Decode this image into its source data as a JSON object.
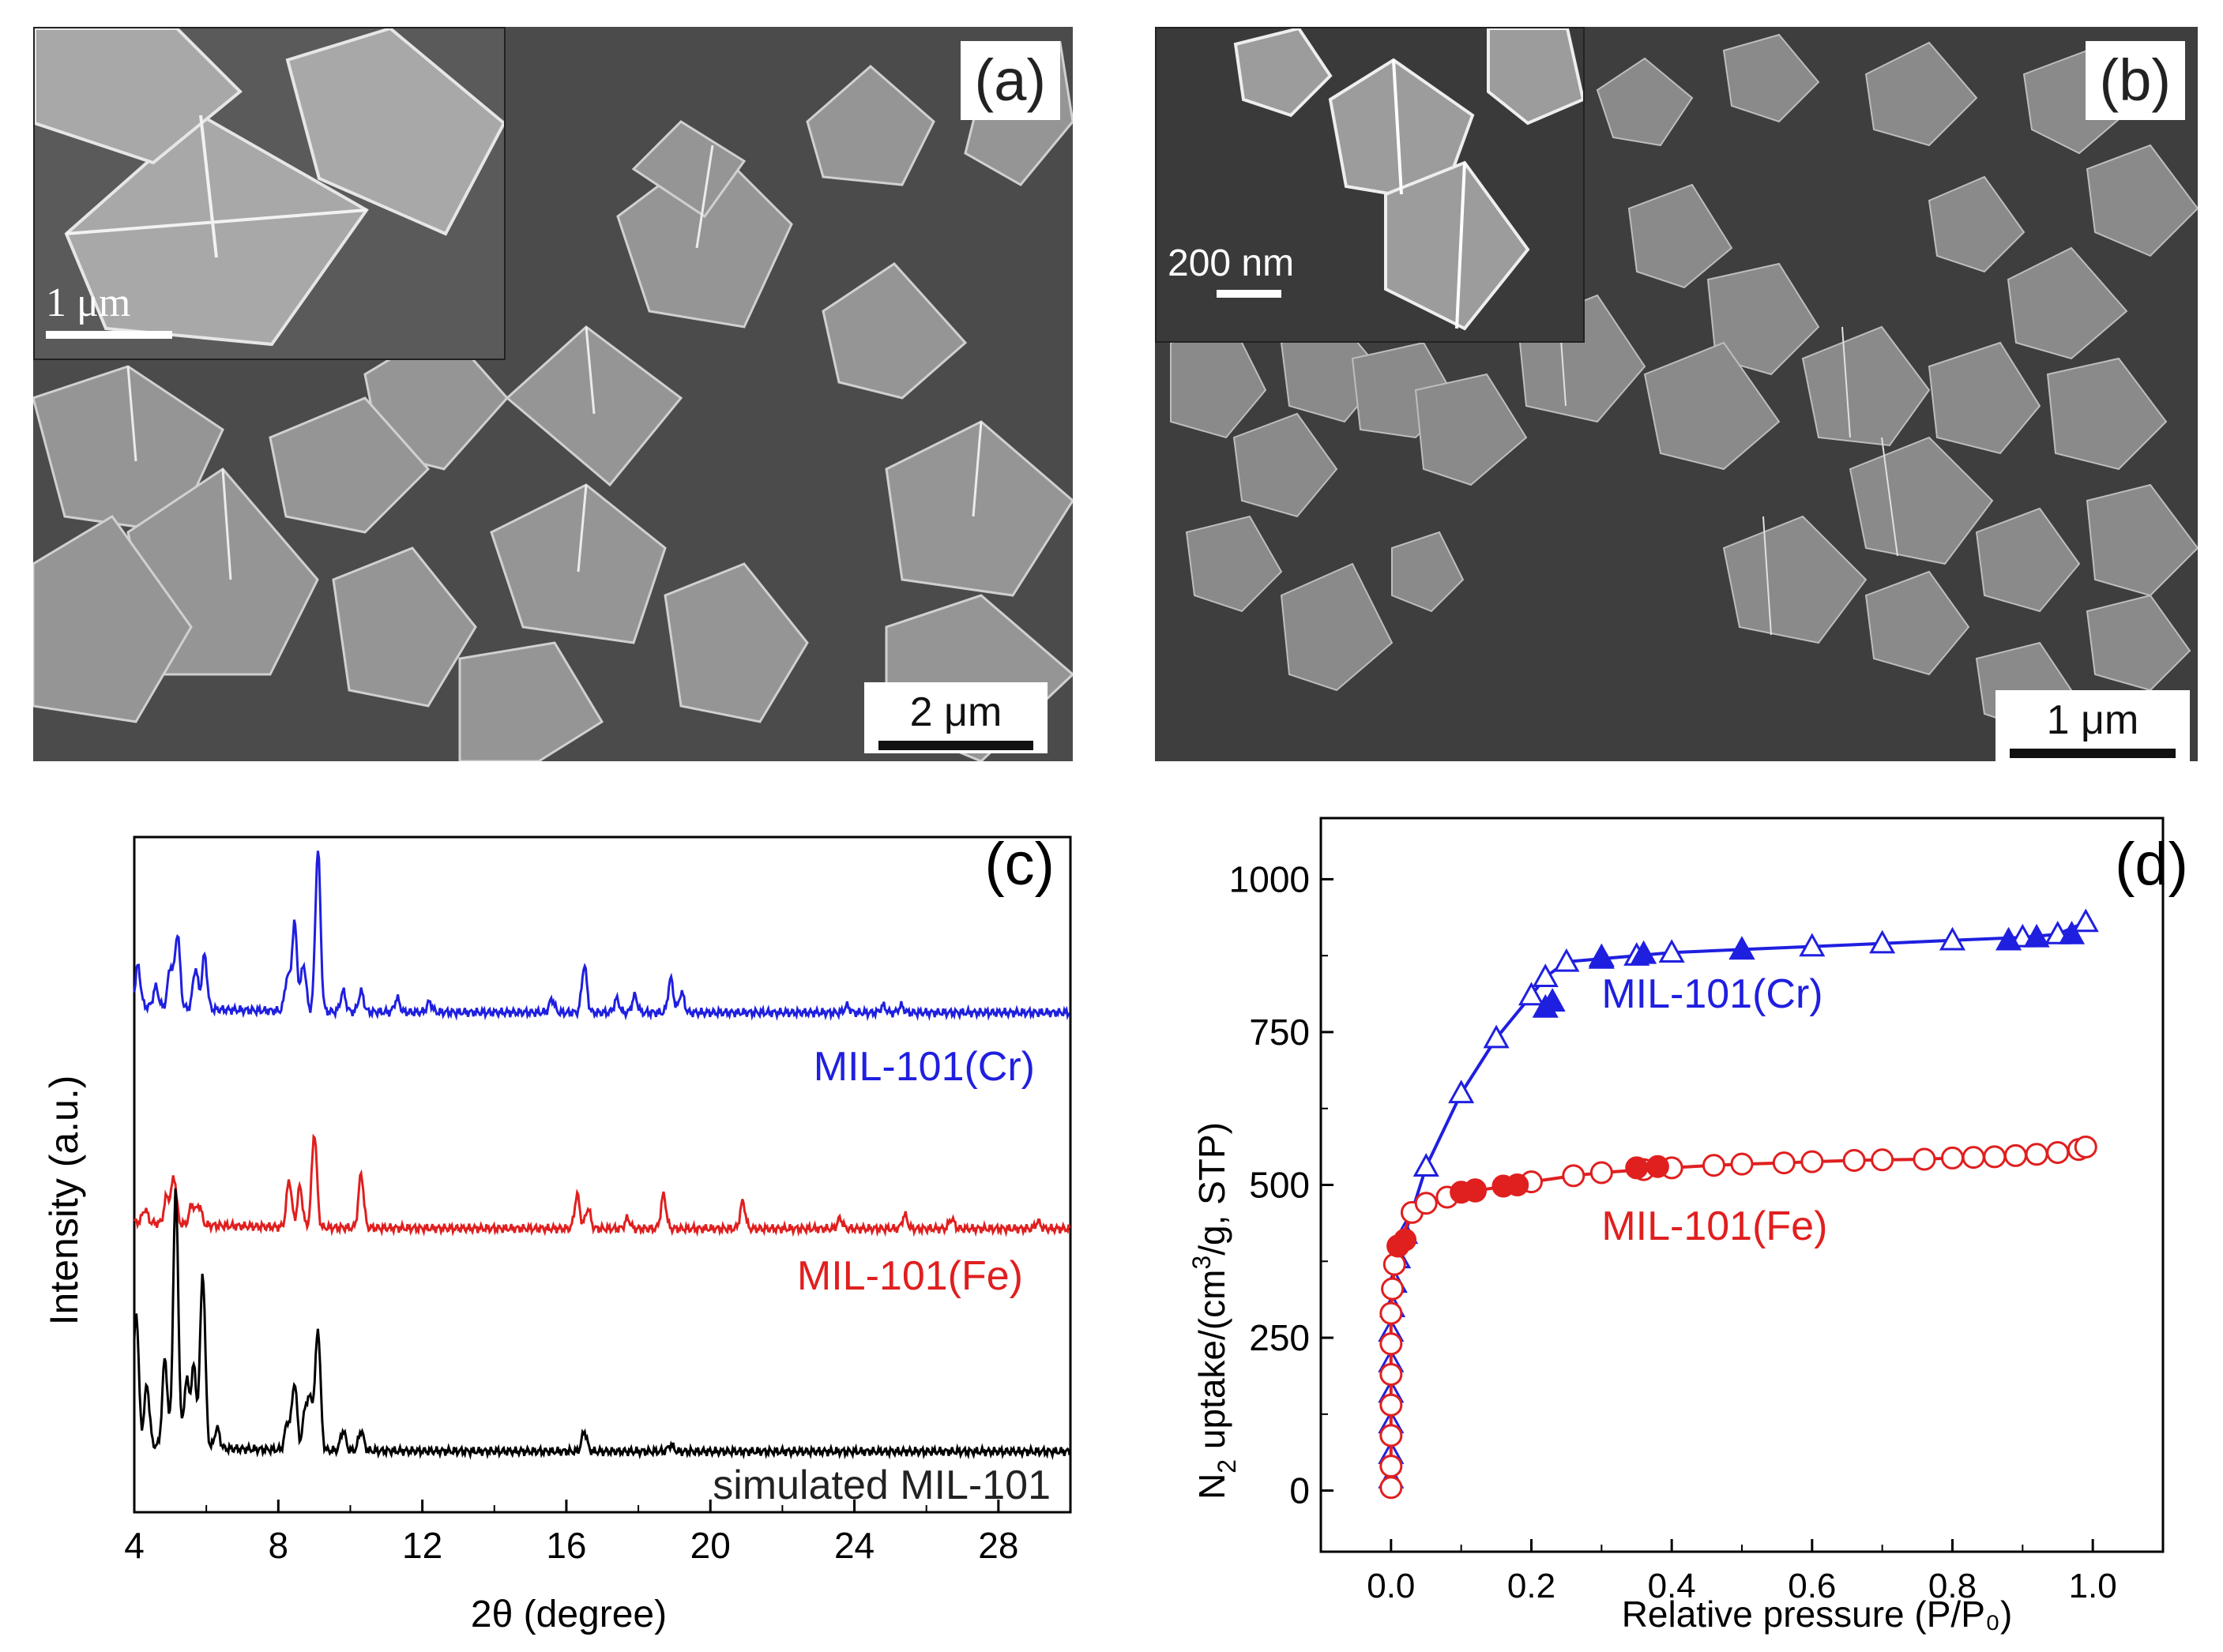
{
  "panels": {
    "a": {
      "label": "(a)",
      "scale_main": "2 μm",
      "scale_inset": "1 μm"
    },
    "b": {
      "label": "(b)",
      "scale_main": "1 μm",
      "scale_inset": "200 nm"
    }
  },
  "colors": {
    "cr": "#1f1fe0",
    "fe": "#e01f1f",
    "sim": "#000000"
  },
  "chart_data": [
    {
      "panel": "(c)",
      "type": "line",
      "xlabel": "2θ (degree)",
      "ylabel": "Intensity (a.u.)",
      "xlim": [
        4,
        30
      ],
      "ylim": [
        0,
        1
      ],
      "xticks": [
        4,
        8,
        12,
        16,
        20,
        24,
        28
      ],
      "series": [
        {
          "name": "MIL-101(Cr)",
          "label": "MIL-101(Cr)",
          "color": "#1f1fe0",
          "baseline": 0.74,
          "peaks": [
            [
              4.1,
              0.06
            ],
            [
              4.6,
              0.03
            ],
            [
              5.0,
              0.06
            ],
            [
              5.2,
              0.11
            ],
            [
              5.7,
              0.06
            ],
            [
              5.95,
              0.08
            ],
            [
              8.25,
              0.05
            ],
            [
              8.45,
              0.13
            ],
            [
              8.7,
              0.07
            ],
            [
              9.1,
              0.24
            ],
            [
              9.8,
              0.03
            ],
            [
              10.3,
              0.03
            ],
            [
              11.3,
              0.02
            ],
            [
              12.2,
              0.015
            ],
            [
              15.6,
              0.02
            ],
            [
              16.5,
              0.07
            ],
            [
              17.4,
              0.02
            ],
            [
              17.9,
              0.025
            ],
            [
              18.9,
              0.05
            ],
            [
              19.2,
              0.03
            ],
            [
              23.8,
              0.01
            ],
            [
              24.8,
              0.01
            ],
            [
              25.3,
              0.01
            ]
          ]
        },
        {
          "name": "MIL-101(Fe)",
          "label": "MIL-101(Fe)",
          "color": "#e01f1f",
          "baseline": 0.42,
          "peaks": [
            [
              4.3,
              0.02
            ],
            [
              4.9,
              0.04
            ],
            [
              5.1,
              0.07
            ],
            [
              5.6,
              0.03
            ],
            [
              5.8,
              0.03
            ],
            [
              8.3,
              0.07
            ],
            [
              8.6,
              0.06
            ],
            [
              9.0,
              0.14
            ],
            [
              10.3,
              0.08
            ],
            [
              16.3,
              0.05
            ],
            [
              16.6,
              0.03
            ],
            [
              17.7,
              0.015
            ],
            [
              18.7,
              0.05
            ],
            [
              20.9,
              0.04
            ],
            [
              23.6,
              0.015
            ],
            [
              25.4,
              0.02
            ],
            [
              26.7,
              0.015
            ],
            [
              29.1,
              0.01
            ]
          ]
        },
        {
          "name": "simulated MIL-101",
          "label": "simulated MIL-101",
          "color": "#000000",
          "baseline": 0.09,
          "peaks": [
            [
              4.05,
              0.2
            ],
            [
              4.35,
              0.09
            ],
            [
              4.85,
              0.13
            ],
            [
              5.15,
              0.38
            ],
            [
              5.45,
              0.1
            ],
            [
              5.65,
              0.12
            ],
            [
              5.9,
              0.26
            ],
            [
              6.3,
              0.03
            ],
            [
              8.25,
              0.04
            ],
            [
              8.45,
              0.1
            ],
            [
              8.75,
              0.06
            ],
            [
              8.9,
              0.07
            ],
            [
              9.1,
              0.18
            ],
            [
              9.8,
              0.03
            ],
            [
              10.3,
              0.03
            ],
            [
              16.5,
              0.03
            ],
            [
              18.9,
              0.01
            ]
          ]
        }
      ]
    },
    {
      "panel": "(d)",
      "type": "scatter",
      "xlabel": "Relative pressure (P/P₀)",
      "ylabel_main": "N",
      "ylabel_sub": "2",
      "ylabel_rest": " uptake/(cm",
      "ylabel_sup": "3",
      "ylabel_end": "/g, STP)",
      "xlim": [
        -0.1,
        1.1
      ],
      "ylim": [
        -100,
        1100
      ],
      "xticks": [
        0.0,
        0.2,
        0.4,
        0.6,
        0.8,
        1.0
      ],
      "yticks": [
        0,
        250,
        500,
        750,
        1000
      ],
      "series": [
        {
          "name": "MIL-101(Cr)",
          "label": "MIL-101(Cr)",
          "color": "#1f1fe0",
          "marker": "triangle",
          "adsorption": [
            [
              0.0,
              20
            ],
            [
              0.0,
              60
            ],
            [
              0.0,
              110
            ],
            [
              0.0,
              160
            ],
            [
              0.0,
              210
            ],
            [
              0.0,
              260
            ],
            [
              0.002,
              300
            ],
            [
              0.005,
              340
            ],
            [
              0.01,
              380
            ],
            [
              0.02,
              420
            ],
            [
              0.05,
              530
            ],
            [
              0.1,
              650
            ],
            [
              0.15,
              740
            ],
            [
              0.2,
              810
            ],
            [
              0.22,
              840
            ],
            [
              0.25,
              865
            ],
            [
              0.3,
              870
            ],
            [
              0.35,
              875
            ],
            [
              0.4,
              880
            ],
            [
              0.5,
              885
            ],
            [
              0.6,
              890
            ],
            [
              0.7,
              895
            ],
            [
              0.8,
              900
            ],
            [
              0.9,
              905
            ],
            [
              0.95,
              910
            ],
            [
              0.99,
              930
            ]
          ],
          "desorption": [
            [
              0.97,
              910
            ],
            [
              0.92,
              905
            ],
            [
              0.88,
              900
            ],
            [
              0.5,
              885
            ],
            [
              0.36,
              878
            ],
            [
              0.3,
              873
            ],
            [
              0.23,
              800
            ],
            [
              0.22,
              790
            ]
          ]
        },
        {
          "name": "MIL-101(Fe)",
          "label": "MIL-101(Fe)",
          "color": "#e01f1f",
          "marker": "circle",
          "adsorption": [
            [
              0.0,
              5
            ],
            [
              0.0,
              40
            ],
            [
              0.0,
              90
            ],
            [
              0.0,
              140
            ],
            [
              0.0,
              190
            ],
            [
              0.0,
              240
            ],
            [
              0.0,
              290
            ],
            [
              0.002,
              330
            ],
            [
              0.005,
              370
            ],
            [
              0.01,
              400
            ],
            [
              0.03,
              455
            ],
            [
              0.05,
              470
            ],
            [
              0.08,
              480
            ],
            [
              0.12,
              490
            ],
            [
              0.2,
              505
            ],
            [
              0.26,
              515
            ],
            [
              0.3,
              520
            ],
            [
              0.36,
              525
            ],
            [
              0.4,
              528
            ],
            [
              0.46,
              532
            ],
            [
              0.5,
              534
            ],
            [
              0.56,
              536
            ],
            [
              0.6,
              538
            ],
            [
              0.66,
              540
            ],
            [
              0.7,
              541
            ],
            [
              0.76,
              542
            ],
            [
              0.8,
              544
            ],
            [
              0.83,
              545
            ],
            [
              0.86,
              546
            ],
            [
              0.89,
              548
            ],
            [
              0.92,
              550
            ],
            [
              0.95,
              553
            ],
            [
              0.98,
              558
            ],
            [
              0.99,
              562
            ]
          ],
          "desorption": [
            [
              0.38,
              530
            ],
            [
              0.35,
              528
            ],
            [
              0.18,
              500
            ],
            [
              0.16,
              498
            ],
            [
              0.12,
              492
            ],
            [
              0.1,
              488
            ],
            [
              0.02,
              410
            ],
            [
              0.01,
              400
            ]
          ]
        }
      ]
    }
  ]
}
